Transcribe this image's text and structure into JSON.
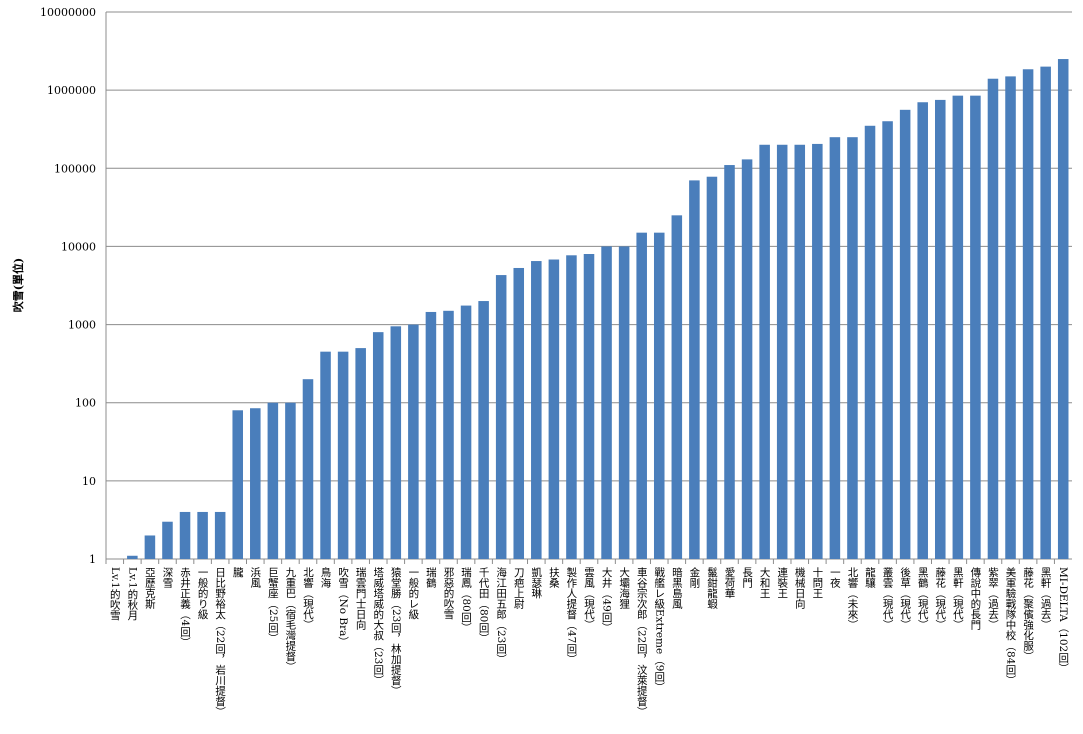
{
  "chart_data": {
    "type": "bar",
    "y_label": "吹雪(單位)",
    "log": true,
    "grid": true,
    "color": "#4a7ebb",
    "ylim": [
      1,
      10000000
    ],
    "yticks": [
      1,
      10,
      100,
      1000,
      10000,
      100000,
      1000000,
      10000000
    ],
    "categories": [
      "Lv.1的吹雪",
      "Lv.1的秋月",
      "亞歷克斯",
      "深雪",
      "赤井正義（4回）",
      "一般的り級",
      "日比野裕太（22回，岩川提督）",
      "朧",
      "浜風",
      "巨蟹座（25回）",
      "九重巴（宿毛灣提督）",
      "北響（現代）",
      "鳥海",
      "吹雪（No Bra）",
      "瑞雲門士日向",
      "塔威塔威的大叔（23回）",
      "猿堂勝（23回，林加提督）",
      "一般的レ級",
      "瑞鶴",
      "邪惡的吹雪",
      "瑞鳳（80回）",
      "千代田（80回）",
      "海江田五郎（23回）",
      "刀疤上尉",
      "凱瑟琳",
      "扶桑",
      "製作人提督（47回）",
      "雲風（現代）",
      "大井（49回）",
      "大壩海狸",
      "車谷宗次郎（22回，汶萊提督）",
      "戰艦レ級Extreme（9回）",
      "暗黑島風",
      "金剛",
      "鬣鉗龍蝦",
      "愛荷華",
      "長門",
      "大和王",
      "連裝王",
      "機械日向",
      "十問王",
      "一夜",
      "北響（未來）",
      "龍驤",
      "叢雲（現代）",
      "後草（現代）",
      "黑鶴（現代）",
      "藤花（現代）",
      "黑軒（現代）",
      "傳說中的長門",
      "紫翠（過去）",
      "美軍驗戰隊中校（84回）",
      "藤花（聚儐強化服）",
      "黑軒（過去）",
      "MI-DELTA（102回）"
    ],
    "values": [
      1,
      1.1,
      2,
      3,
      4,
      4,
      4,
      80,
      85,
      100,
      100,
      200,
      450,
      450,
      500,
      800,
      950,
      1000,
      1450,
      1500,
      1750,
      2000,
      4300,
      5300,
      6500,
      6800,
      7700,
      8000,
      10000,
      10000,
      15000,
      15000,
      25000,
      70000,
      78000,
      110000,
      130000,
      200000,
      200000,
      200000,
      205000,
      250000,
      250000,
      350000,
      400000,
      560000,
      700000,
      750000,
      850000,
      850000,
      1400000,
      1500000,
      1850000,
      2000000,
      2500000
    ]
  }
}
